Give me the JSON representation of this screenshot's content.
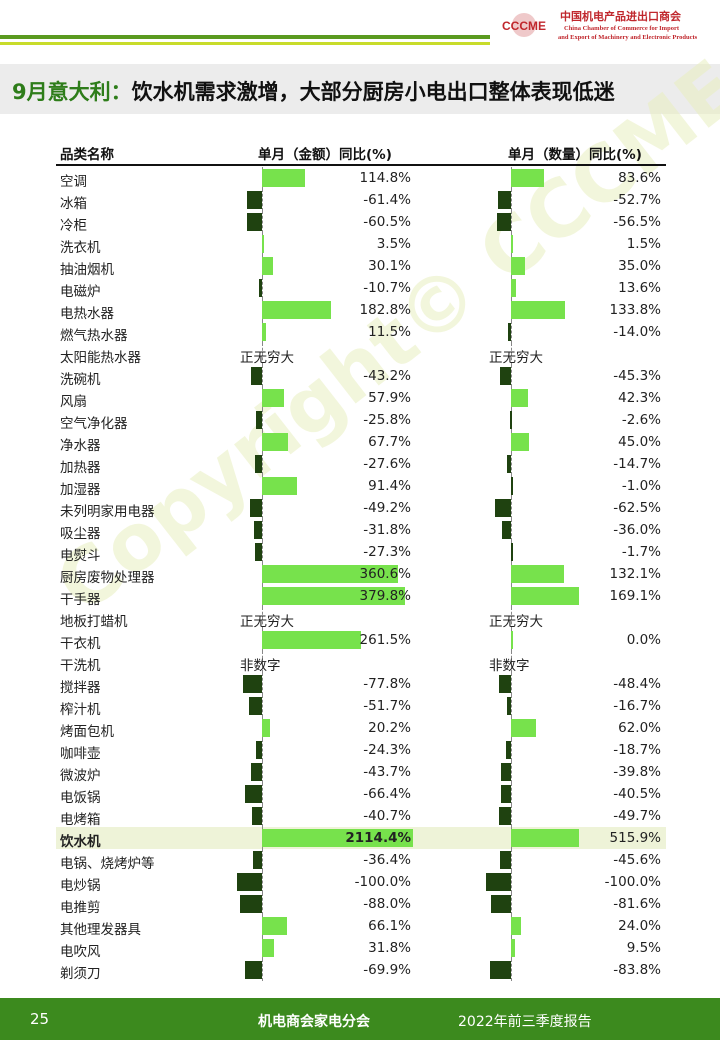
{
  "header": {
    "org_cn": "中国机电产品进出口商会",
    "org_en1": "China Chamber of Commerce for Import",
    "org_en2": "and Export of Machinery and Electronic Products",
    "logo_text": "CCCME"
  },
  "title": {
    "prefix": "9月意大利：",
    "text": "饮水机需求激增，大部分厨房小电出口整体表现低迷"
  },
  "table": {
    "col_category": "品类名称",
    "col_value": "单月（金额）同比(%)",
    "col_quantity": "单月（数量）同比(%)",
    "rows": [
      {
        "cat": "空调",
        "v1": "114.8%",
        "n1": 114.8,
        "v2": "83.6%",
        "n2": 83.6
      },
      {
        "cat": "冰箱",
        "v1": "-61.4%",
        "n1": -61.4,
        "v2": "-52.7%",
        "n2": -52.7
      },
      {
        "cat": "冷柜",
        "v1": "-60.5%",
        "n1": -60.5,
        "v2": "-56.5%",
        "n2": -56.5
      },
      {
        "cat": "洗衣机",
        "v1": "3.5%",
        "n1": 3.5,
        "v2": "1.5%",
        "n2": 1.5
      },
      {
        "cat": "抽油烟机",
        "v1": "30.1%",
        "n1": 30.1,
        "v2": "35.0%",
        "n2": 35.0
      },
      {
        "cat": "电磁炉",
        "v1": "-10.7%",
        "n1": -10.7,
        "v2": "13.6%",
        "n2": 13.6
      },
      {
        "cat": "电热水器",
        "v1": "182.8%",
        "n1": 182.8,
        "v2": "133.8%",
        "n2": 133.8
      },
      {
        "cat": "燃气热水器",
        "v1": "11.5%",
        "n1": 11.5,
        "v2": "-14.0%",
        "n2": -14.0
      },
      {
        "cat": "太阳能热水器",
        "t1": "正无穷大",
        "t2": "正无穷大"
      },
      {
        "cat": "洗碗机",
        "v1": "-43.2%",
        "n1": -43.2,
        "v2": "-45.3%",
        "n2": -45.3
      },
      {
        "cat": "风扇",
        "v1": "57.9%",
        "n1": 57.9,
        "v2": "42.3%",
        "n2": 42.3
      },
      {
        "cat": "空气净化器",
        "v1": "-25.8%",
        "n1": -25.8,
        "v2": "-2.6%",
        "n2": -2.6
      },
      {
        "cat": "净水器",
        "v1": "67.7%",
        "n1": 67.7,
        "v2": "45.0%",
        "n2": 45.0
      },
      {
        "cat": "加热器",
        "v1": "-27.6%",
        "n1": -27.6,
        "v2": "-14.7%",
        "n2": -14.7
      },
      {
        "cat": "加湿器",
        "v1": "91.4%",
        "n1": 91.4,
        "v2": "-1.0%",
        "n2": -1.0
      },
      {
        "cat": "未列明家用电器",
        "v1": "-49.2%",
        "n1": -49.2,
        "v2": "-62.5%",
        "n2": -62.5
      },
      {
        "cat": "吸尘器",
        "v1": "-31.8%",
        "n1": -31.8,
        "v2": "-36.0%",
        "n2": -36.0
      },
      {
        "cat": "电熨斗",
        "v1": "-27.3%",
        "n1": -27.3,
        "v2": "-1.7%",
        "n2": -1.7
      },
      {
        "cat": "厨房废物处理器",
        "v1": "360.6%",
        "n1": 360.6,
        "v2": "132.1%",
        "n2": 132.1
      },
      {
        "cat": "干手器",
        "v1": "379.8%",
        "n1": 379.8,
        "v2": "169.1%",
        "n2": 169.1
      },
      {
        "cat": "地板打蜡机",
        "t1": "正无穷大",
        "t2": "正无穷大"
      },
      {
        "cat": "干衣机",
        "v1": "261.5%",
        "n1": 261.5,
        "v2": "0.0%",
        "n2": 0.0
      },
      {
        "cat": "干洗机",
        "t1": "非数字",
        "t2": "非数字"
      },
      {
        "cat": "搅拌器",
        "v1": "-77.8%",
        "n1": -77.8,
        "v2": "-48.4%",
        "n2": -48.4
      },
      {
        "cat": "榨汁机",
        "v1": "-51.7%",
        "n1": -51.7,
        "v2": "-16.7%",
        "n2": -16.7
      },
      {
        "cat": "烤面包机",
        "v1": "20.2%",
        "n1": 20.2,
        "v2": "62.0%",
        "n2": 62.0
      },
      {
        "cat": "咖啡壶",
        "v1": "-24.3%",
        "n1": -24.3,
        "v2": "-18.7%",
        "n2": -18.7
      },
      {
        "cat": "微波炉",
        "v1": "-43.7%",
        "n1": -43.7,
        "v2": "-39.8%",
        "n2": -39.8
      },
      {
        "cat": "电饭锅",
        "v1": "-66.4%",
        "n1": -66.4,
        "v2": "-40.5%",
        "n2": -40.5
      },
      {
        "cat": "电烤箱",
        "v1": "-40.7%",
        "n1": -40.7,
        "v2": "-49.7%",
        "n2": -49.7
      },
      {
        "cat": "饮水机",
        "v1": "2114.4%",
        "n1": 2114.4,
        "v2": "515.9%",
        "n2": 515.9,
        "highlight": true
      },
      {
        "cat": "电锅、烧烤炉等",
        "v1": "-36.4%",
        "n1": -36.4,
        "v2": "-45.6%",
        "n2": -45.6
      },
      {
        "cat": "电炒锅",
        "v1": "-100.0%",
        "n1": -100.0,
        "v2": "-100.0%",
        "n2": -100.0
      },
      {
        "cat": "电推剪",
        "v1": "-88.0%",
        "n1": -88.0,
        "v2": "-81.6%",
        "n2": -81.6
      },
      {
        "cat": "其他理发器具",
        "v1": "66.1%",
        "n1": 66.1,
        "v2": "24.0%",
        "n2": 24.0
      },
      {
        "cat": "电吹风",
        "v1": "31.8%",
        "n1": 31.8,
        "v2": "9.5%",
        "n2": 9.5
      },
      {
        "cat": "剃须刀",
        "v1": "-69.9%",
        "n1": -69.9,
        "v2": "-83.8%",
        "n2": -83.8
      }
    ]
  },
  "watermark": "Copyright© CCCME",
  "footer": {
    "page": "25",
    "org": "机电商会家电分会",
    "report": "2022年前三季度报告"
  },
  "colors": {
    "positive_bar": "#77e24c",
    "negative_bar": "#1f4210",
    "footer": "#3c8a1e",
    "highlight_row": "#eef3d8"
  }
}
